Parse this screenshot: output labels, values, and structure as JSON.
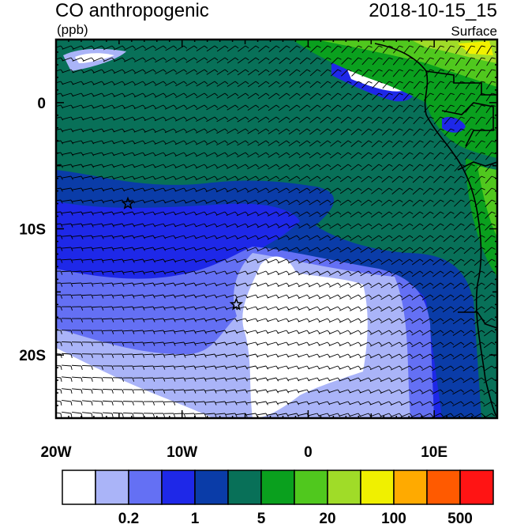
{
  "header": {
    "title": "CO anthropogenic",
    "units": "(ppb)",
    "datetime": "2018-10-15_15",
    "level": "Surface"
  },
  "map": {
    "lon_range": [
      -20,
      15
    ],
    "lat_range": [
      -25,
      5
    ],
    "lon_ticks": [
      {
        "value": -20,
        "label": "20W"
      },
      {
        "value": -10,
        "label": "10W"
      },
      {
        "value": 0,
        "label": "0"
      },
      {
        "value": 10,
        "label": "10E"
      }
    ],
    "lat_ticks": [
      {
        "value": 0,
        "label": "0"
      },
      {
        "value": -10,
        "label": "10S"
      },
      {
        "value": -20,
        "label": "20S"
      }
    ],
    "markers": [
      {
        "name": "star",
        "lon": -14.3,
        "lat": -8.0
      },
      {
        "name": "star",
        "lon": -5.7,
        "lat": -16.0
      }
    ]
  },
  "colorbar": {
    "colors": [
      "#ffffff",
      "#aab4f8",
      "#6470f4",
      "#1e28e8",
      "#0a3ca8",
      "#087058",
      "#0aa01e",
      "#50c81e",
      "#a0dc28",
      "#f0f000",
      "#ffaa00",
      "#ff5a00",
      "#ff1414"
    ],
    "labels": [
      {
        "index": 2,
        "text": "0.2"
      },
      {
        "index": 4,
        "text": "1"
      },
      {
        "index": 6,
        "text": "5"
      },
      {
        "index": 8,
        "text": "20"
      },
      {
        "index": 10,
        "text": "100"
      },
      {
        "index": 12,
        "text": "500"
      }
    ]
  }
}
